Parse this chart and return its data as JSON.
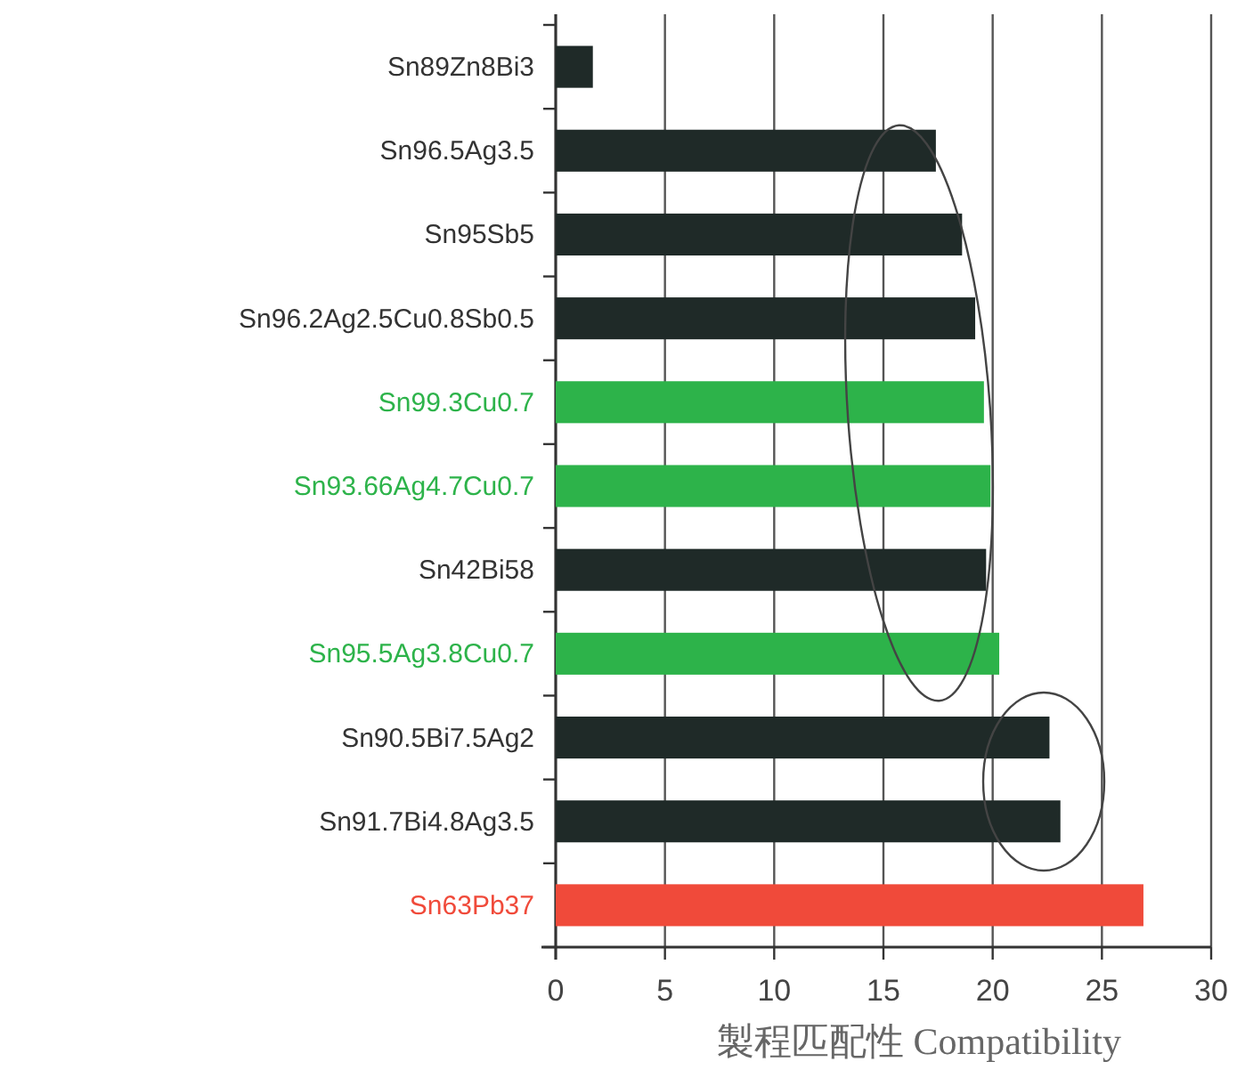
{
  "chart_data": {
    "type": "bar",
    "orientation": "horizontal",
    "xlabel": "製程匹配性 Compatibility",
    "categories": [
      "Sn89Zn8Bi3",
      "Sn96.5Ag3.5",
      "Sn95Sb5",
      "Sn96.2Ag2.5Cu0.8Sb0.5",
      "Sn99.3Cu0.7",
      "Sn93.66Ag4.7Cu0.7",
      "Sn42Bi58",
      "Sn95.5Ag3.8Cu0.7",
      "Sn90.5Bi7.5Ag2",
      "Sn91.7Bi4.8Ag3.5",
      "Sn63Pb37"
    ],
    "values": [
      1.7,
      17.4,
      18.6,
      19.2,
      19.6,
      19.9,
      19.7,
      20.3,
      22.6,
      23.1,
      26.9
    ],
    "colors": [
      "#1f2a28",
      "#1f2a28",
      "#1f2a28",
      "#1f2a28",
      "#2db34a",
      "#2db34a",
      "#1f2a28",
      "#2db34a",
      "#1f2a28",
      "#1f2a28",
      "#f04a3a"
    ],
    "xlim": [
      0,
      30
    ],
    "xticks": [
      0,
      5,
      10,
      15,
      20,
      25,
      30
    ],
    "grid": "x"
  }
}
